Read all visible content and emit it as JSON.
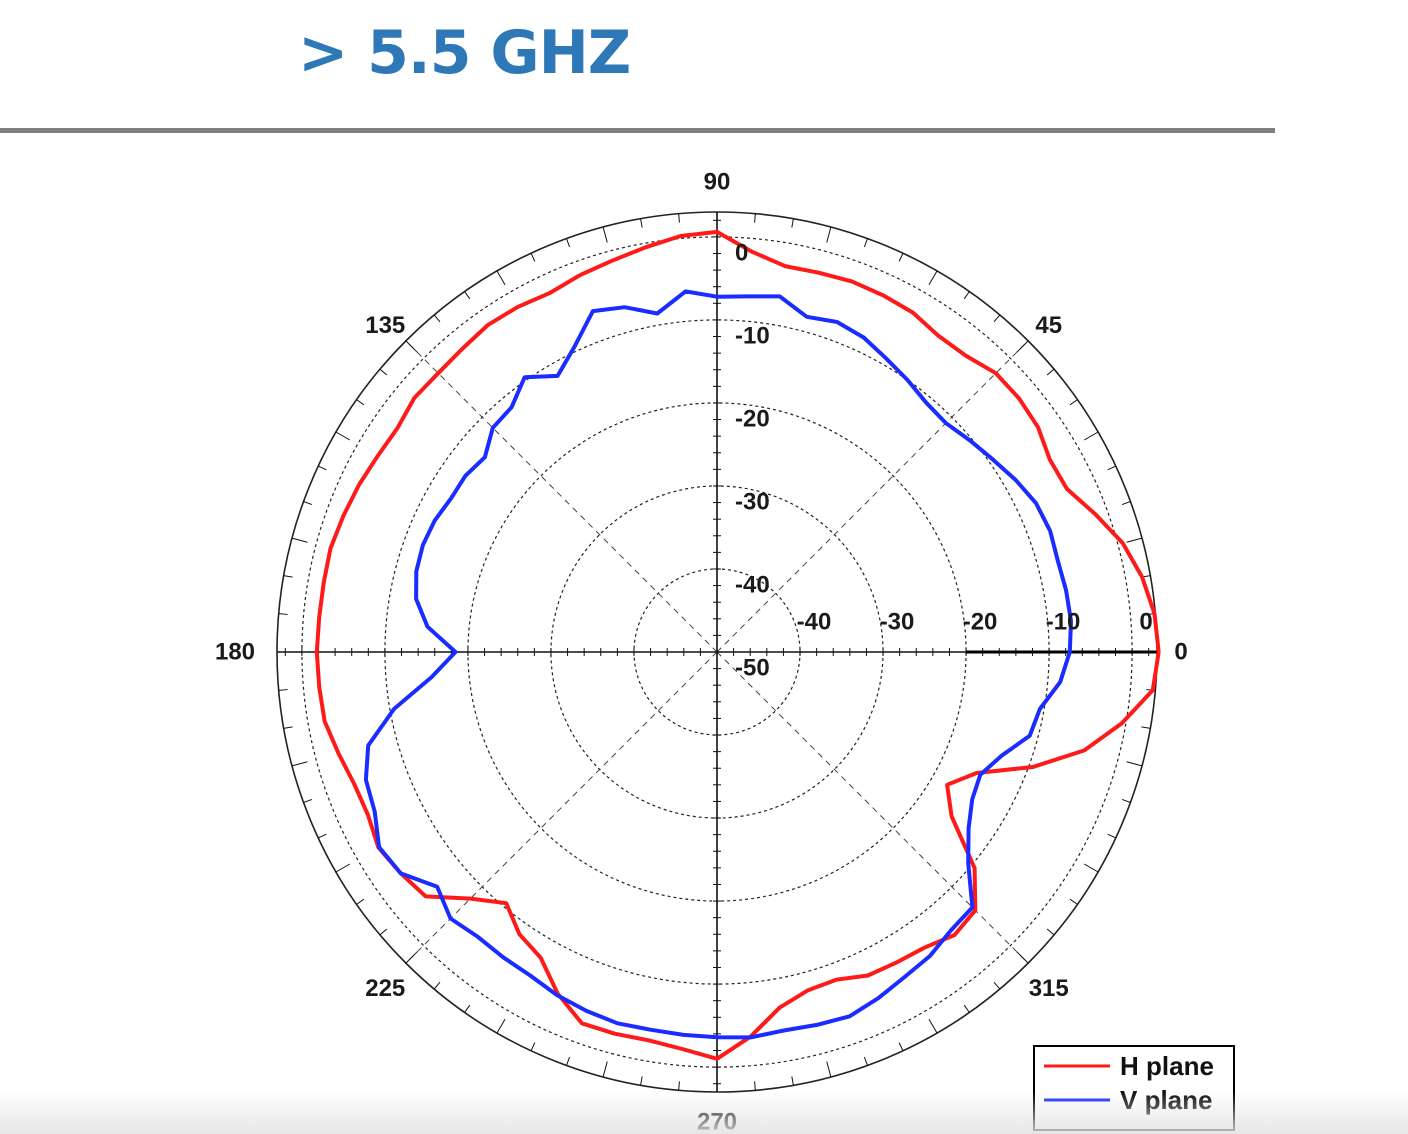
{
  "page": {
    "heading": "> 5.5 GHZ"
  },
  "chart_data": {
    "type": "polar",
    "title": "",
    "r_range": [
      -50,
      3
    ],
    "r_unit": "dB",
    "r_ticks": [
      0,
      -10,
      -20,
      -30,
      -40,
      -50
    ],
    "r_tick_labels_vertical": [
      "0",
      "-10",
      "-20",
      "-30",
      "-40",
      "-50"
    ],
    "r_tick_labels_horizontal": [
      "-40",
      "-30",
      "-20",
      "-10",
      "0"
    ],
    "angle_labels": [
      {
        "deg": 90,
        "text": "90"
      },
      {
        "deg": 135,
        "text": "135"
      },
      {
        "deg": 45,
        "text": "45"
      },
      {
        "deg": 180,
        "text": "180"
      },
      {
        "deg": 0,
        "text": "0"
      },
      {
        "deg": 225,
        "text": "225"
      },
      {
        "deg": 315,
        "text": "315"
      },
      {
        "deg": 270,
        "text": "270"
      }
    ],
    "grid": true,
    "legend_position": "bottom-right",
    "series": [
      {
        "name": "H plane",
        "color": "#ff1a1a",
        "theta": [
          0,
          5,
          10,
          15,
          20,
          25,
          30,
          35,
          40,
          45,
          50,
          55,
          60,
          65,
          70,
          75,
          80,
          85,
          90,
          95,
          100,
          105,
          110,
          115,
          120,
          125,
          130,
          135,
          140,
          145,
          150,
          155,
          160,
          165,
          170,
          175,
          180,
          185,
          190,
          195,
          200,
          205,
          210,
          215,
          220,
          225,
          230,
          235,
          240,
          245,
          250,
          255,
          260,
          265,
          270,
          275,
          280,
          285,
          290,
          295,
          300,
          305,
          310,
          315,
          320,
          325,
          330,
          335,
          340,
          345,
          350,
          355,
          360
        ],
        "r": [
          3.2,
          2.9,
          2.0,
          0.6,
          -1.5,
          -3.5,
          -3.7,
          -2.8,
          -2.5,
          -2.5,
          -3.4,
          -3.5,
          -2.8,
          -2.6,
          -2.5,
          -2.7,
          -2.8,
          -1.6,
          0.6,
          0.3,
          -0.5,
          -1.2,
          -1.7,
          -2.3,
          -2.0,
          -1.9,
          -2.3,
          -2.5,
          -2.4,
          -3.0,
          -2.8,
          -2.4,
          -2.1,
          -1.8,
          -1.9,
          -1.9,
          -1.8,
          -1.9,
          -2.0,
          -2.8,
          -3.5,
          -3.6,
          -2.9,
          -3.5,
          -4.2,
          -8.0,
          -10.5,
          -8.5,
          -7.5,
          -4.6,
          -2.4,
          -2.4,
          -2.5,
          -2.0,
          -1.0,
          -3.5,
          -6.5,
          -7.8,
          -8.0,
          -7.0,
          -6.8,
          -6.5,
          -5.5,
          -6.0,
          -9.5,
          -15.5,
          -18.0,
          -15.5,
          -9.5,
          -4.2,
          -0.5,
          2.7,
          3.2
        ]
      },
      {
        "name": "V plane",
        "color": "#1a2cff",
        "theta": [
          0,
          5,
          10,
          15,
          20,
          25,
          30,
          35,
          40,
          45,
          50,
          55,
          60,
          65,
          70,
          75,
          80,
          85,
          90,
          95,
          100,
          105,
          110,
          115,
          120,
          125,
          130,
          135,
          140,
          145,
          150,
          155,
          160,
          165,
          170,
          175,
          180,
          185,
          190,
          195,
          200,
          205,
          210,
          215,
          220,
          225,
          230,
          235,
          240,
          245,
          250,
          255,
          260,
          265,
          270,
          275,
          280,
          285,
          290,
          295,
          300,
          305,
          310,
          315,
          320,
          325,
          330,
          335,
          340,
          345,
          350,
          355,
          360
        ],
        "r": [
          -7.5,
          -7.2,
          -7.3,
          -7.5,
          -7.3,
          -7.6,
          -8.5,
          -9.5,
          -10.3,
          -11.0,
          -10.8,
          -10.0,
          -9.2,
          -8.2,
          -7.7,
          -8.2,
          -6.5,
          -7.0,
          -7.2,
          -6.4,
          -8.6,
          -7.0,
          -6.3,
          -9.4,
          -11.6,
          -9.6,
          -11.5,
          -11.8,
          -13.5,
          -13.0,
          -13.0,
          -12.5,
          -12.3,
          -12.5,
          -13.2,
          -15.0,
          -18.5,
          -15.5,
          -10.5,
          -6.5,
          -5.0,
          -4.5,
          -3.0,
          -3.5,
          -6.0,
          -4.6,
          -5.2,
          -5.1,
          -5.0,
          -4.4,
          -4.0,
          -3.7,
          -3.8,
          -3.7,
          -3.6,
          -3.4,
          -3.7,
          -3.5,
          -3.3,
          -4.0,
          -4.8,
          -5.3,
          -6.2,
          -6.5,
          -10.5,
          -13.0,
          -14.5,
          -15.0,
          -13.5,
          -11.0,
          -10.5,
          -8.5,
          -7.5
        ]
      }
    ]
  }
}
